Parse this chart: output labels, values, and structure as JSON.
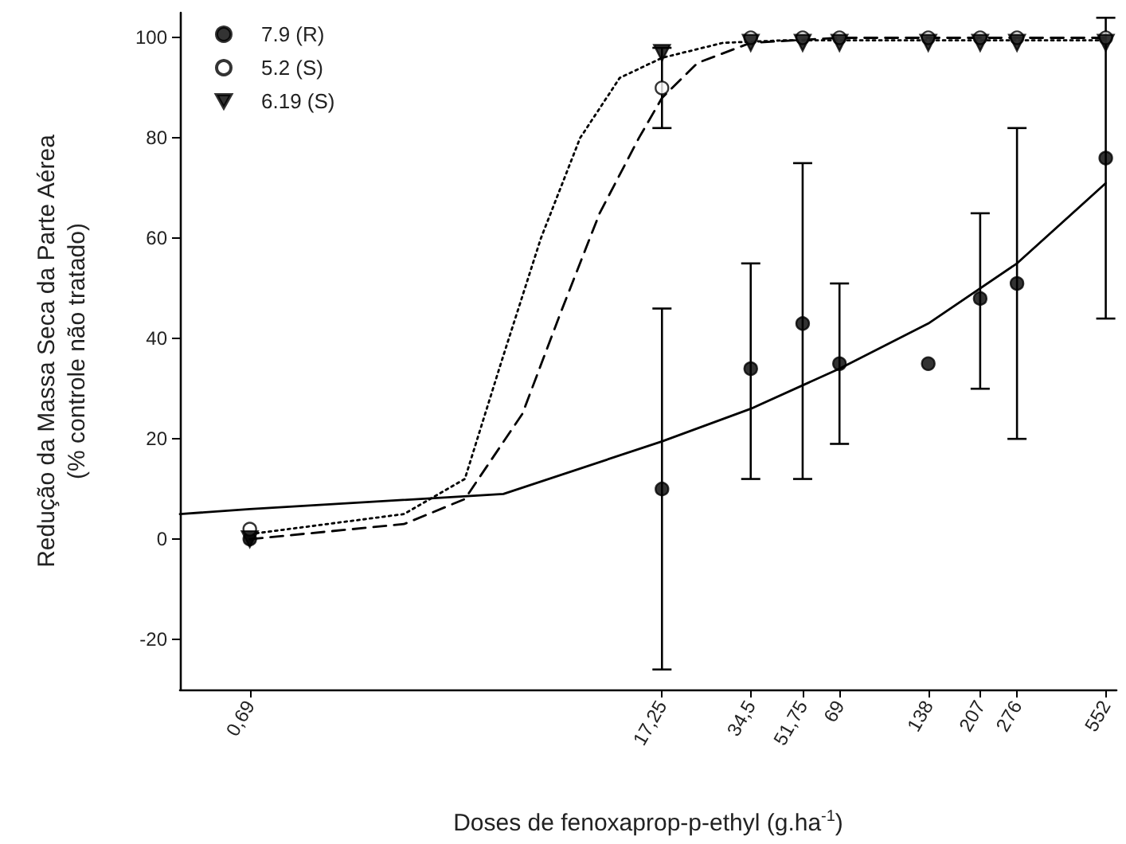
{
  "chart_data": {
    "type": "scatter",
    "xlabel": "Doses de fenoxaprop-p-ethyl (g.ha$^{-1}$)",
    "ylabel": "Redução da Massa Seca da Parte Aérea\n(% controle não tratado)",
    "log": "x",
    "xlim": [
      0.4,
      600
    ],
    "xticks": [
      {
        "value": 0.69,
        "label": "0,69"
      },
      {
        "value": 17.25,
        "label": "17,25"
      },
      {
        "value": 34.5,
        "label": "34,5"
      },
      {
        "value": 51.75,
        "label": "51,75"
      },
      69,
      138,
      207,
      276,
      552
    ],
    "ylim": [
      -30,
      105
    ],
    "yticks": [
      -20,
      0,
      20,
      40,
      60,
      80,
      100
    ],
    "grid": false,
    "legend": "top left",
    "series": [
      {
        "name": "7.9 (R)",
        "marker": "circle",
        "color": "#000000",
        "x": [
          0.69,
          17.25,
          34.5,
          51.75,
          69,
          138,
          207,
          276,
          552
        ],
        "values": [
          0,
          10,
          34,
          43,
          35,
          35,
          48,
          51,
          76
        ],
        "errors": [
          null,
          [
            -26,
            46
          ],
          [
            12,
            55
          ],
          [
            12,
            75
          ],
          [
            19,
            51
          ],
          null,
          [
            30,
            65
          ],
          [
            20,
            82
          ],
          [
            44,
            104
          ]
        ]
      },
      {
        "name": "5.2 (S)",
        "marker": "circle",
        "color": "#ffffff",
        "x": [
          0.69,
          17.25,
          34.5,
          51.75,
          69,
          138,
          207,
          276,
          552
        ],
        "values": [
          2,
          90,
          100,
          100,
          100,
          100,
          100,
          100,
          100
        ],
        "errors": [
          null,
          [
            82,
            98
          ],
          null,
          null,
          null,
          null,
          null,
          null,
          null
        ]
      },
      {
        "name": "6.19 (S)",
        "marker": "triangle",
        "color": "#000000",
        "x": [
          0.69,
          17.25,
          34.5,
          51.75,
          69,
          138,
          207,
          276,
          552
        ],
        "values": [
          0,
          97,
          99,
          99,
          99,
          99,
          99,
          99,
          99
        ]
      },
      {
        "type": "line",
        "marker": "none",
        "line_style": "solid",
        "color": "#000000",
        "x": [
          0.4,
          0.69,
          5,
          17.25,
          34.5,
          69,
          138,
          276,
          552
        ],
        "values": [
          5,
          6,
          9,
          19.5,
          26,
          34,
          43,
          55,
          71
        ]
      },
      {
        "type": "line",
        "marker": "none",
        "line_style": "dashed",
        "color": "#000000",
        "x": [
          0.69,
          2.3,
          3.7,
          5.8,
          7.8,
          10.6,
          14.4,
          17.25,
          22.8,
          34.5,
          69,
          552
        ],
        "values": [
          0,
          3,
          8,
          25,
          45,
          65,
          80,
          88,
          95,
          99,
          100,
          100
        ]
      },
      {
        "type": "line",
        "marker": "none",
        "line_style": "dotted",
        "color": "#000000",
        "x": [
          0.69,
          2.3,
          3.7,
          4.9,
          6.7,
          9.1,
          12.4,
          17.25,
          27.8,
          45,
          552
        ],
        "values": [
          1,
          5,
          12,
          35,
          60,
          80,
          92,
          96,
          99,
          99.5,
          99.5
        ]
      }
    ]
  }
}
